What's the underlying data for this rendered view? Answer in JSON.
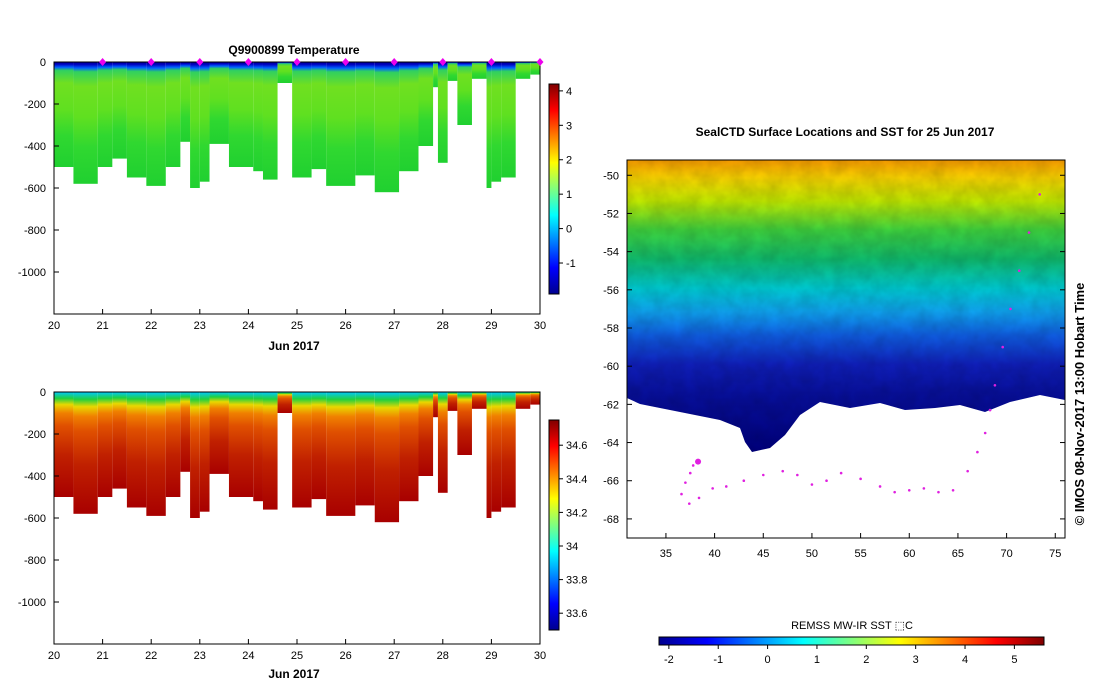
{
  "chart_data": [
    {
      "type": "heatmap",
      "title": "Q9900899  Temperature",
      "xlabel": "Jun 2017",
      "xlim": [
        20,
        30
      ],
      "x_ticks": [
        "20",
        "21",
        "22",
        "23",
        "24",
        "25",
        "26",
        "27",
        "28",
        "29",
        "30"
      ],
      "ylim": [
        -1200,
        0
      ],
      "y_ticks": [
        "0",
        "-200",
        "-400",
        "-600",
        "-800",
        "-1000"
      ],
      "colorbar": {
        "range": [
          -1.9,
          4.2
        ],
        "ticks": [
          "4",
          "3",
          "2",
          "1",
          "0",
          "-1"
        ]
      },
      "profile_markers_days": [
        21,
        22,
        23,
        24,
        25,
        26,
        27,
        28,
        29,
        30
      ],
      "profiles": [
        {
          "x0": 20.0,
          "x1": 20.4,
          "depth": 500,
          "value": 1.1
        },
        {
          "x0": 20.4,
          "x1": 20.9,
          "depth": 580,
          "value": 1.0
        },
        {
          "x0": 20.9,
          "x1": 21.2,
          "depth": 500,
          "value": 1.1
        },
        {
          "x0": 21.2,
          "x1": 21.5,
          "depth": 460,
          "value": 1.1
        },
        {
          "x0": 21.5,
          "x1": 21.9,
          "depth": 550,
          "value": 1.05
        },
        {
          "x0": 21.9,
          "x1": 22.3,
          "depth": 590,
          "value": 1.0
        },
        {
          "x0": 22.3,
          "x1": 22.6,
          "depth": 500,
          "value": 1.1
        },
        {
          "x0": 22.6,
          "x1": 22.8,
          "depth": 380,
          "value": 1.2
        },
        {
          "x0": 22.8,
          "x1": 23.0,
          "depth": 600,
          "value": 1.0
        },
        {
          "x0": 23.0,
          "x1": 23.2,
          "depth": 570,
          "value": 1.0
        },
        {
          "x0": 23.2,
          "x1": 23.6,
          "depth": 390,
          "value": 1.2
        },
        {
          "x0": 23.6,
          "x1": 24.1,
          "depth": 500,
          "value": 1.1
        },
        {
          "x0": 24.1,
          "x1": 24.3,
          "depth": 520,
          "value": 1.1
        },
        {
          "x0": 24.3,
          "x1": 24.6,
          "depth": 560,
          "value": 1.0
        },
        {
          "x0": 24.6,
          "x1": 24.9,
          "depth": 100,
          "value": 1.3
        },
        {
          "x0": 24.9,
          "x1": 25.3,
          "depth": 550,
          "value": 1.05
        },
        {
          "x0": 25.3,
          "x1": 25.6,
          "depth": 510,
          "value": 1.1
        },
        {
          "x0": 25.6,
          "x1": 26.2,
          "depth": 590,
          "value": 1.0
        },
        {
          "x0": 26.2,
          "x1": 26.6,
          "depth": 540,
          "value": 1.05
        },
        {
          "x0": 26.6,
          "x1": 27.1,
          "depth": 620,
          "value": 1.0
        },
        {
          "x0": 27.1,
          "x1": 27.5,
          "depth": 520,
          "value": 1.05
        },
        {
          "x0": 27.5,
          "x1": 27.8,
          "depth": 400,
          "value": 1.2
        },
        {
          "x0": 27.8,
          "x1": 27.9,
          "depth": 120,
          "value": 1.3
        },
        {
          "x0": 27.9,
          "x1": 28.1,
          "depth": 480,
          "value": 1.1
        },
        {
          "x0": 28.1,
          "x1": 28.3,
          "depth": 90,
          "value": 1.4
        },
        {
          "x0": 28.3,
          "x1": 28.6,
          "depth": 300,
          "value": 1.2
        },
        {
          "x0": 28.6,
          "x1": 28.9,
          "depth": 80,
          "value": 1.3
        },
        {
          "x0": 28.9,
          "x1": 29.0,
          "depth": 600,
          "value": 1.0
        },
        {
          "x0": 29.0,
          "x1": 29.2,
          "depth": 570,
          "value": 1.0
        },
        {
          "x0": 29.2,
          "x1": 29.5,
          "depth": 550,
          "value": 1.05
        },
        {
          "x0": 29.5,
          "x1": 29.8,
          "depth": 80,
          "value": 1.3
        },
        {
          "x0": 29.8,
          "x1": 30.0,
          "depth": 60,
          "value": 1.4
        }
      ]
    },
    {
      "type": "heatmap",
      "title": "",
      "xlabel": "Jun 2017",
      "xlim": [
        20,
        30
      ],
      "x_ticks": [
        "20",
        "21",
        "22",
        "23",
        "24",
        "25",
        "26",
        "27",
        "28",
        "29",
        "30"
      ],
      "ylim": [
        -1200,
        0
      ],
      "y_ticks": [
        "0",
        "-200",
        "-400",
        "-600",
        "-800",
        "-1000"
      ],
      "colorbar": {
        "range": [
          33.5,
          34.75
        ],
        "ticks": [
          "34.6",
          "34.4",
          "34.2",
          "34",
          "33.8",
          "33.6"
        ]
      },
      "profiles_same_as": "temperature"
    },
    {
      "type": "heatmap",
      "title": "SealCTD Surface Locations and SST for 25 Jun 2017",
      "xlim": [
        31,
        76
      ],
      "x_ticks": [
        "35",
        "40",
        "45",
        "50",
        "55",
        "60",
        "65",
        "70",
        "75"
      ],
      "ylim": [
        -69,
        -49.2
      ],
      "y_ticks": [
        "-50",
        "-52",
        "-54",
        "-56",
        "-58",
        "-60",
        "-62",
        "-64",
        "-66",
        "-68"
      ],
      "colorbar": {
        "label": "REMSS MW-IR SST ⬚C",
        "range": [
          -2.2,
          5.6
        ],
        "ticks": [
          "-2",
          "-1",
          "0",
          "1",
          "2",
          "3",
          "4",
          "5"
        ]
      },
      "track_points": [
        [
          38.3,
          -65.0
        ],
        [
          37.8,
          -65.2
        ],
        [
          37.5,
          -65.6
        ],
        [
          37.0,
          -66.1
        ],
        [
          36.6,
          -66.7
        ],
        [
          37.4,
          -67.2
        ],
        [
          38.4,
          -66.9
        ],
        [
          39.8,
          -66.4
        ],
        [
          41.2,
          -66.3
        ],
        [
          43.0,
          -66.0
        ],
        [
          45.0,
          -65.7
        ],
        [
          47.0,
          -65.5
        ],
        [
          48.5,
          -65.7
        ],
        [
          50.0,
          -66.2
        ],
        [
          51.5,
          -66.0
        ],
        [
          53.0,
          -65.6
        ],
        [
          55.0,
          -65.9
        ],
        [
          57.0,
          -66.3
        ],
        [
          58.5,
          -66.6
        ],
        [
          60.0,
          -66.5
        ],
        [
          61.5,
          -66.4
        ],
        [
          63.0,
          -66.6
        ],
        [
          64.5,
          -66.5
        ],
        [
          66.0,
          -65.5
        ],
        [
          67.0,
          -64.5
        ],
        [
          67.8,
          -63.5
        ],
        [
          68.3,
          -62.3
        ],
        [
          68.8,
          -61.0
        ],
        [
          69.6,
          -59.0
        ],
        [
          70.4,
          -57.0
        ],
        [
          71.3,
          -55.0
        ],
        [
          72.3,
          -53.0
        ],
        [
          73.4,
          -51.0
        ]
      ]
    }
  ],
  "side_label": "©  IMOS 08-Nov-2017 13:00 Hobart Time",
  "colors": {
    "profile_marker": "#ee00ee",
    "track": "#e020e0",
    "land": "#ffffff"
  }
}
